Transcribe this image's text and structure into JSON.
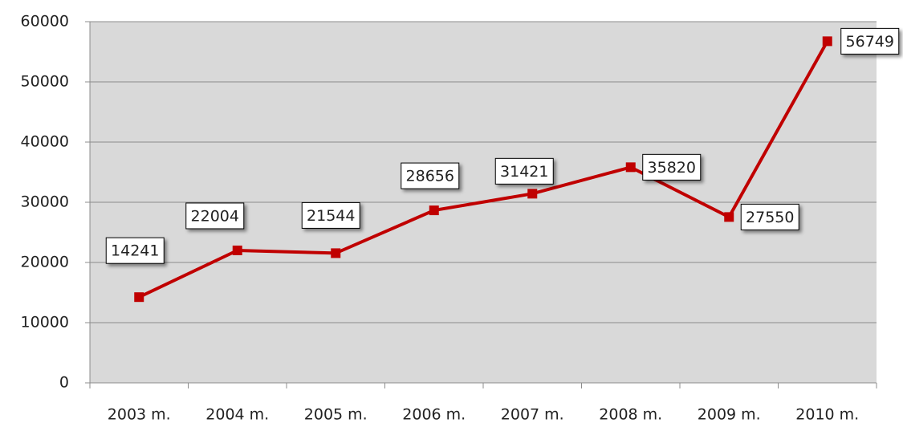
{
  "chart_data": {
    "type": "line",
    "categories": [
      "2003 m.",
      "2004 m.",
      "2005 m.",
      "2006 m.",
      "2007 m.",
      "2008 m.",
      "2009 m.",
      "2010 m."
    ],
    "values": [
      14241,
      22004,
      21544,
      28656,
      31421,
      35820,
      27550,
      56749
    ],
    "color": "#c00000",
    "ylim": [
      0,
      60000
    ],
    "yticks": [
      0,
      10000,
      20000,
      30000,
      40000,
      50000,
      60000
    ],
    "grid": true
  }
}
